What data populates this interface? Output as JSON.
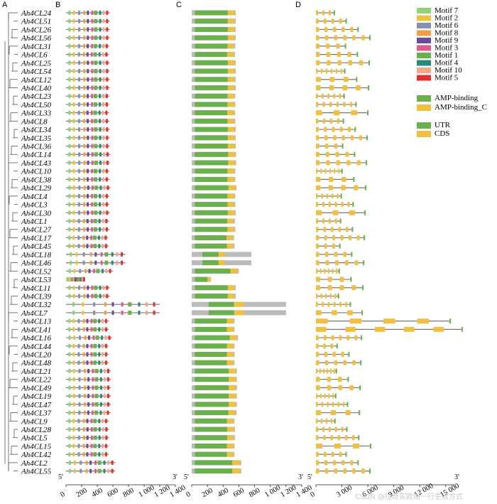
{
  "panels": {
    "a": "A",
    "b": "B",
    "c": "C",
    "d": "D"
  },
  "ends": {
    "five": "5'",
    "three": "3'"
  },
  "genes": [
    "Ah4CL24",
    "Ah4CL51",
    "Ah4CL26",
    "Ah4CL56",
    "Ah4CL31",
    "Ah4CL6",
    "Ah4CL25",
    "Ah4CL54",
    "Ah4CL12",
    "Ah4CL40",
    "Ah4CL23",
    "Ah4CL50",
    "Ah4CL33",
    "Ah4CL8",
    "Ah4CL34",
    "Ah4CL35",
    "Ah4CL36",
    "Ah4CL14",
    "Ah4CL43",
    "Ah4CL10",
    "Ah4CL38",
    "Ah4CL29",
    "Ah4CL4",
    "Ah4CL3",
    "Ah4CL30",
    "Ah4CL1",
    "Ah4CL27",
    "Ah4CL17",
    "Ah4CL45",
    "Ah4CL18",
    "Ah4CL46",
    "Ah4CL52",
    "Ah4CL53",
    "Ah4CL11",
    "Ah4CL39",
    "Ah4CL32",
    "Ah4CL7",
    "Ah4CL13",
    "Ah4CL41",
    "Ah4CL16",
    "Ah4CL44",
    "Ah4CL20",
    "Ah4CL48",
    "Ah4CL21",
    "Ah4CL22",
    "Ah4CL49",
    "Ah4CL19",
    "Ah4CL47",
    "Ah4CL37",
    "Ah4CL9",
    "Ah4CL28",
    "Ah4CL5",
    "Ah4CL15",
    "Ah4CL42",
    "Ah4CL2",
    "Ah4CL55"
  ],
  "protein_lengths": [
    560,
    560,
    560,
    560,
    555,
    550,
    560,
    560,
    560,
    560,
    555,
    555,
    550,
    555,
    560,
    560,
    560,
    565,
    565,
    555,
    555,
    570,
    555,
    555,
    560,
    550,
    555,
    540,
    545,
    760,
    760,
    600,
    245,
    560,
    560,
    1200,
    1200,
    545,
    545,
    590,
    545,
    545,
    545,
    575,
    575,
    575,
    575,
    575,
    570,
    545,
    550,
    550,
    545,
    545,
    630,
    630
  ],
  "axis_b": {
    "ticks": [
      "0",
      "200",
      "400",
      "600",
      "800",
      "1 000",
      "1 200",
      "1 400"
    ],
    "max": 1400
  },
  "axis_c": {
    "ticks": [
      "0",
      "200",
      "400",
      "600",
      "800",
      "1 000",
      "1 200",
      "1 400"
    ],
    "max": 1400
  },
  "axis_d": {
    "ticks": [
      "0",
      "3 000",
      "6 000",
      "9 000",
      "12 000",
      "15 000"
    ],
    "max": 16000
  },
  "legend": {
    "motifs": [
      {
        "label": "Motif 7",
        "color": "#8fd27a"
      },
      {
        "label": "Motif 2",
        "color": "#f0c040"
      },
      {
        "label": "Motif 6",
        "color": "#8a8fb0"
      },
      {
        "label": "Motif 8",
        "color": "#f0a040"
      },
      {
        "label": "Motif 9",
        "color": "#6a4a9a"
      },
      {
        "label": "Motif 3",
        "color": "#e05a8a"
      },
      {
        "label": "Motif 1",
        "color": "#6ab04c"
      },
      {
        "label": "Motif 4",
        "color": "#2a8a7a"
      },
      {
        "label": "Motif 10",
        "color": "#f4a888"
      },
      {
        "label": "Motif 5",
        "color": "#e03030"
      }
    ],
    "domains": [
      {
        "label": "AMP-binding",
        "color": "#6ab04c"
      },
      {
        "label": "AMP-binding_C",
        "color": "#f0c040"
      }
    ],
    "structure": [
      {
        "label": "UTR",
        "color": "#6ab04c"
      },
      {
        "label": "CDS",
        "color": "#f0c040"
      }
    ]
  },
  "watermark": "CSDN @拉奇买欧阳一行生活方式",
  "colors": {
    "line": "#777777",
    "utr_gray": "#bbbbbb",
    "amp": "#6ab04c",
    "ampc": "#f0c040",
    "tree": "#555555"
  }
}
